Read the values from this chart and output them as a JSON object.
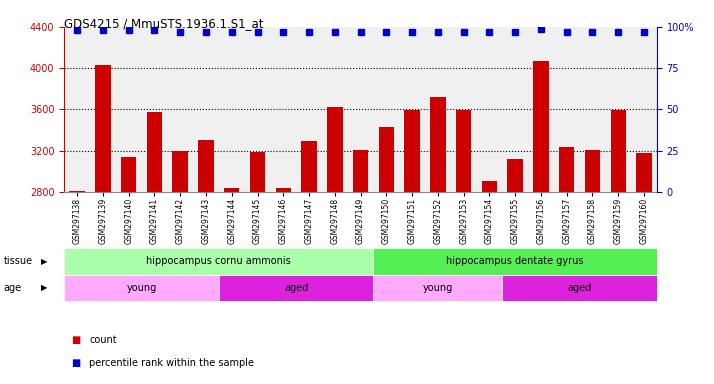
{
  "title": "GDS4215 / MmuSTS.1936.1.S1_at",
  "samples": [
    "GSM297138",
    "GSM297139",
    "GSM297140",
    "GSM297141",
    "GSM297142",
    "GSM297143",
    "GSM297144",
    "GSM297145",
    "GSM297146",
    "GSM297147",
    "GSM297148",
    "GSM297149",
    "GSM297150",
    "GSM297151",
    "GSM297152",
    "GSM297153",
    "GSM297154",
    "GSM297155",
    "GSM297156",
    "GSM297157",
    "GSM297158",
    "GSM297159",
    "GSM297160"
  ],
  "bar_values": [
    2810,
    4030,
    3140,
    3580,
    3200,
    3300,
    2840,
    3190,
    2840,
    3290,
    3620,
    3210,
    3430,
    3590,
    3720,
    3590,
    2910,
    3115,
    4065,
    3240,
    3210,
    3590,
    3180
  ],
  "percentile_values": [
    98,
    98,
    98,
    98,
    97,
    97,
    97,
    97,
    97,
    97,
    97,
    97,
    97,
    97,
    97,
    97,
    97,
    97,
    99,
    97,
    97,
    97,
    97
  ],
  "ylim_left": [
    2800,
    4400
  ],
  "ylim_right": [
    0,
    100
  ],
  "yticks_left": [
    2800,
    3200,
    3600,
    4000,
    4400
  ],
  "yticks_right": [
    0,
    25,
    50,
    75,
    100
  ],
  "bar_color": "#cc0000",
  "dot_color": "#0000cc",
  "bar_width": 0.6,
  "grid_color": "#000000",
  "tissue_groups": [
    {
      "label": "hippocampus cornu ammonis",
      "start": 0,
      "end": 12,
      "color": "#aaffaa"
    },
    {
      "label": "hippocampus dentate gyrus",
      "start": 12,
      "end": 23,
      "color": "#55ee55"
    }
  ],
  "age_groups": [
    {
      "label": "young",
      "start": 0,
      "end": 6,
      "color": "#ffaaff"
    },
    {
      "label": "aged",
      "start": 6,
      "end": 12,
      "color": "#dd22dd"
    },
    {
      "label": "young",
      "start": 12,
      "end": 17,
      "color": "#ffaaff"
    },
    {
      "label": "aged",
      "start": 17,
      "end": 23,
      "color": "#dd22dd"
    }
  ],
  "legend_items": [
    {
      "label": "count",
      "color": "#cc0000"
    },
    {
      "label": "percentile rank within the sample",
      "color": "#0000cc"
    }
  ],
  "bg_color": "#ffffff",
  "plot_bg_color": "#f0f0f0",
  "left_axis_color": "#cc0000",
  "right_axis_color": "#0000cc",
  "grid_yticks": [
    3200,
    3600,
    4000
  ]
}
